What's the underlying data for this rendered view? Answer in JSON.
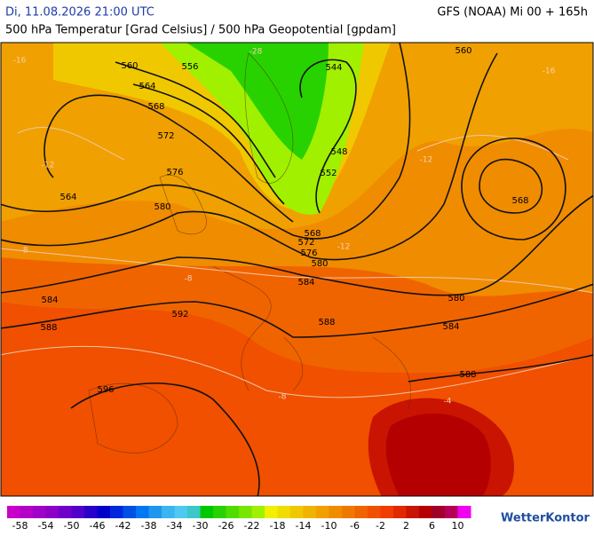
{
  "header": {
    "date": "Di, 11.08.2026 21:00 UTC",
    "model": "GFS (NOAA) Mi 00 + 165h",
    "subtitle": "500 hPa Temperatur [Grad Celsius] / 500 hPa Geopotential [gpdam]"
  },
  "contour_labels": [
    "560",
    "556",
    "564",
    "568",
    "572",
    "576",
    "580",
    "564",
    "544",
    "548",
    "552",
    "568",
    "572",
    "576",
    "580",
    "584",
    "588",
    "584",
    "592",
    "596",
    "588",
    "584",
    "580",
    "568",
    "560",
    "588"
  ],
  "temperature_labels": [
    "-28",
    "-16",
    "-12",
    "-8",
    "-12",
    "-8",
    "-8",
    "-4",
    "-12",
    "-16"
  ],
  "colorbar": {
    "colors": [
      "#c800c8",
      "#b400c8",
      "#a000c8",
      "#8c00c8",
      "#6e00c8",
      "#5000c8",
      "#2800c8",
      "#0000c8",
      "#0028dc",
      "#0050e6",
      "#0078f0",
      "#1e96f0",
      "#3cb4f0",
      "#50c8f0",
      "#3cc8c8",
      "#00c800",
      "#28d200",
      "#50dc00",
      "#78e600",
      "#a0f000",
      "#f0f000",
      "#f0dc00",
      "#f0c800",
      "#f0b400",
      "#f0a000",
      "#f08c00",
      "#f07800",
      "#f06400",
      "#f05000",
      "#f03c00",
      "#e12800",
      "#c81400",
      "#b40000",
      "#a00028",
      "#b4005a",
      "#f000f0"
    ],
    "labels": [
      "-58",
      "-54",
      "-50",
      "-46",
      "-42",
      "-38",
      "-34",
      "-30",
      "-26",
      "-22",
      "-18",
      "-14",
      "-10",
      "-6",
      "-2",
      "2",
      "6",
      "10"
    ]
  },
  "logo": "WetterKontor"
}
